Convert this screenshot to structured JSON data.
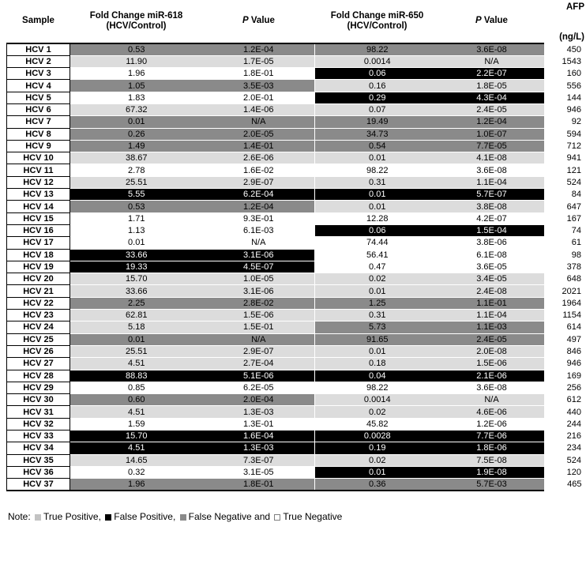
{
  "table": {
    "headers": {
      "sample": "Sample",
      "fc618_1": "Fold Change miR-618",
      "fc618_2": "(HCV/Control)",
      "p_italic": "P",
      "p_rest": " Value",
      "fc650_1": "Fold Change miR-650",
      "fc650_2": "(HCV/Control)",
      "afp_1": "AFP",
      "afp_2": "(ng/L)"
    },
    "rows": [
      {
        "sample": "HCV 1",
        "fc618": "0.53",
        "p618": "1.2E-04",
        "cls618": "fn",
        "fc650": "98.22",
        "p650": "3.6E-08",
        "cls650": "fn",
        "afp": "450"
      },
      {
        "sample": "HCV 2",
        "fc618": "11.90",
        "p618": "1.7E-05",
        "cls618": "tp",
        "fc650": "0.0014",
        "p650": "N/A",
        "cls650": "tp",
        "afp": "1543"
      },
      {
        "sample": "HCV 3",
        "fc618": "1.96",
        "p618": "1.8E-01",
        "cls618": "tn",
        "fc650": "0.06",
        "p650": "2.2E-07",
        "cls650": "fp",
        "afp": "160"
      },
      {
        "sample": "HCV 4",
        "fc618": "1.05",
        "p618": "3.5E-03",
        "cls618": "fn",
        "fc650": "0.16",
        "p650": "1.8E-05",
        "cls650": "tp",
        "afp": "556"
      },
      {
        "sample": "HCV 5",
        "fc618": "1.83",
        "p618": "2.0E-01",
        "cls618": "tn",
        "fc650": "0.29",
        "p650": "4.3E-04",
        "cls650": "fp",
        "afp": "144"
      },
      {
        "sample": "HCV 6",
        "fc618": "67.32",
        "p618": "1.4E-06",
        "cls618": "tp",
        "fc650": "0.07",
        "p650": "2.4E-05",
        "cls650": "tp",
        "afp": "946"
      },
      {
        "sample": "HCV 7",
        "fc618": "0.01",
        "p618": "N/A",
        "cls618": "fn",
        "fc650": "19.49",
        "p650": "1.2E-04",
        "cls650": "fn",
        "afp": "92"
      },
      {
        "sample": "HCV 8",
        "fc618": "0.26",
        "p618": "2.0E-05",
        "cls618": "fn",
        "fc650": "34.73",
        "p650": "1.0E-07",
        "cls650": "fn",
        "afp": "594"
      },
      {
        "sample": "HCV 9",
        "fc618": "1.49",
        "p618": "1.4E-01",
        "cls618": "fn",
        "fc650": "0.54",
        "p650": "7.7E-05",
        "cls650": "fn",
        "afp": "712"
      },
      {
        "sample": "HCV 10",
        "fc618": "38.67",
        "p618": "2.6E-06",
        "cls618": "tp",
        "fc650": "0.01",
        "p650": "4.1E-08",
        "cls650": "tp",
        "afp": "941"
      },
      {
        "sample": "HCV 11",
        "fc618": "2.78",
        "p618": "1.6E-02",
        "cls618": "tn",
        "fc650": "98.22",
        "p650": "3.6E-08",
        "cls650": "tn",
        "afp": "121"
      },
      {
        "sample": "HCV 12",
        "fc618": "25.51",
        "p618": "2.9E-07",
        "cls618": "tp",
        "fc650": "0.31",
        "p650": "1.1E-04",
        "cls650": "tp",
        "afp": "524"
      },
      {
        "sample": "HCV 13",
        "fc618": "5.55",
        "p618": "6.2E-04",
        "cls618": "fp",
        "fc650": "0.01",
        "p650": "5.7E-07",
        "cls650": "fp",
        "afp": "84"
      },
      {
        "sample": "HCV 14",
        "fc618": "0.53",
        "p618": "1.2E-04",
        "cls618": "fn",
        "fc650": "0.01",
        "p650": "3.8E-08",
        "cls650": "tp",
        "afp": "647"
      },
      {
        "sample": "HCV 15",
        "fc618": "1.71",
        "p618": "9.3E-01",
        "cls618": "tn",
        "fc650": "12.28",
        "p650": "4.2E-07",
        "cls650": "tn",
        "afp": "167"
      },
      {
        "sample": "HCV 16",
        "fc618": "1.13",
        "p618": "6.1E-03",
        "cls618": "tn",
        "fc650": "0.06",
        "p650": "1.5E-04",
        "cls650": "fp",
        "afp": "74"
      },
      {
        "sample": "HCV 17",
        "fc618": "0.01",
        "p618": "N/A",
        "cls618": "tn",
        "fc650": "74.44",
        "p650": "3.8E-06",
        "cls650": "tn",
        "afp": "61"
      },
      {
        "sample": "HCV 18",
        "fc618": "33.66",
        "p618": "3.1E-06",
        "cls618": "fp",
        "fc650": "56.41",
        "p650": "6.1E-08",
        "cls650": "tn",
        "afp": "98"
      },
      {
        "sample": "HCV 19",
        "fc618": "19.33",
        "p618": "4.5E-07",
        "cls618": "fp",
        "fc650": "0.47",
        "p650": "3.6E-05",
        "cls650": "tn",
        "afp": "378"
      },
      {
        "sample": "HCV 20",
        "fc618": "15.70",
        "p618": "1.0E-05",
        "cls618": "tp",
        "fc650": "0.02",
        "p650": "3.4E-05",
        "cls650": "tp",
        "afp": "648"
      },
      {
        "sample": "HCV 21",
        "fc618": "33.66",
        "p618": "3.1E-06",
        "cls618": "tp",
        "fc650": "0.01",
        "p650": "2.4E-08",
        "cls650": "tp",
        "afp": "2021"
      },
      {
        "sample": "HCV 22",
        "fc618": "2.25",
        "p618": "2.8E-02",
        "cls618": "fn",
        "fc650": "1.25",
        "p650": "1.1E-01",
        "cls650": "fn",
        "afp": "1964"
      },
      {
        "sample": "HCV 23",
        "fc618": "62.81",
        "p618": "1.5E-06",
        "cls618": "tp",
        "fc650": "0.31",
        "p650": "1.1E-04",
        "cls650": "tp",
        "afp": "1154"
      },
      {
        "sample": "HCV 24",
        "fc618": "5.18",
        "p618": "1.5E-01",
        "cls618": "tp",
        "fc650": "5.73",
        "p650": "1.1E-03",
        "cls650": "fn",
        "afp": "614"
      },
      {
        "sample": "HCV 25",
        "fc618": "0.01",
        "p618": "N/A",
        "cls618": "fn",
        "fc650": "91.65",
        "p650": "2.4E-05",
        "cls650": "fn",
        "afp": "497"
      },
      {
        "sample": "HCV 26",
        "fc618": "25.51",
        "p618": "2.9E-07",
        "cls618": "tp",
        "fc650": "0.01",
        "p650": "2.0E-08",
        "cls650": "tp",
        "afp": "846"
      },
      {
        "sample": "HCV 27",
        "fc618": "4.51",
        "p618": "2.7E-04",
        "cls618": "tp",
        "fc650": "0.18",
        "p650": "1.5E-06",
        "cls650": "tp",
        "afp": "946"
      },
      {
        "sample": "HCV 28",
        "fc618": "88.83",
        "p618": "5.1E-06",
        "cls618": "fp",
        "fc650": "0.04",
        "p650": "2.1E-06",
        "cls650": "fp",
        "afp": "169"
      },
      {
        "sample": "HCV 29",
        "fc618": "0.85",
        "p618": "6.2E-05",
        "cls618": "tn",
        "fc650": "98.22",
        "p650": "3.6E-08",
        "cls650": "tn",
        "afp": "256"
      },
      {
        "sample": "HCV 30",
        "fc618": "0.60",
        "p618": "2.0E-04",
        "cls618": "fn",
        "fc650": "0.0014",
        "p650": "N/A",
        "cls650": "tp",
        "afp": "612"
      },
      {
        "sample": "HCV 31",
        "fc618": "4.51",
        "p618": "1.3E-03",
        "cls618": "tp",
        "fc650": "0.02",
        "p650": "4.6E-06",
        "cls650": "tp",
        "afp": "440"
      },
      {
        "sample": "HCV 32",
        "fc618": "1.59",
        "p618": "1.3E-01",
        "cls618": "tn",
        "fc650": "45.82",
        "p650": "1.2E-06",
        "cls650": "tn",
        "afp": "244"
      },
      {
        "sample": "HCV 33",
        "fc618": "15.70",
        "p618": "1.6E-04",
        "cls618": "fp",
        "fc650": "0.0028",
        "p650": "7.7E-06",
        "cls650": "fp",
        "afp": "216"
      },
      {
        "sample": "HCV 34",
        "fc618": "4.51",
        "p618": "1.3E-03",
        "cls618": "fp",
        "fc650": "0.19",
        "p650": "1.8E-06",
        "cls650": "fp",
        "afp": "234"
      },
      {
        "sample": "HCV 35",
        "fc618": "14.65",
        "p618": "7.3E-07",
        "cls618": "tp",
        "fc650": "0.02",
        "p650": "7.5E-08",
        "cls650": "tp",
        "afp": "524"
      },
      {
        "sample": "HCV 36",
        "fc618": "0.32",
        "p618": "3.1E-05",
        "cls618": "tn",
        "fc650": "0.01",
        "p650": "1.9E-08",
        "cls650": "fp",
        "afp": "120"
      },
      {
        "sample": "HCV 37",
        "fc618": "1.96",
        "p618": "1.8E-01",
        "cls618": "fn",
        "fc650": "0.36",
        "p650": "5.7E-03",
        "cls650": "fn",
        "afp": "465"
      }
    ]
  },
  "legend": {
    "prefix": "Note: ",
    "items": [
      {
        "type": "tp",
        "label": "True Positive",
        "suffix": ", "
      },
      {
        "type": "fp",
        "label": "False Positive",
        "suffix": ", "
      },
      {
        "type": "fn",
        "label": "False Negative",
        "suffix": " and "
      },
      {
        "type": "tn",
        "label": "True Negative",
        "suffix": ""
      }
    ]
  },
  "colors": {
    "true_positive": "#dcdcdc",
    "false_positive": "#000000",
    "false_negative": "#8a8a8a",
    "true_negative": "#ffffff"
  }
}
